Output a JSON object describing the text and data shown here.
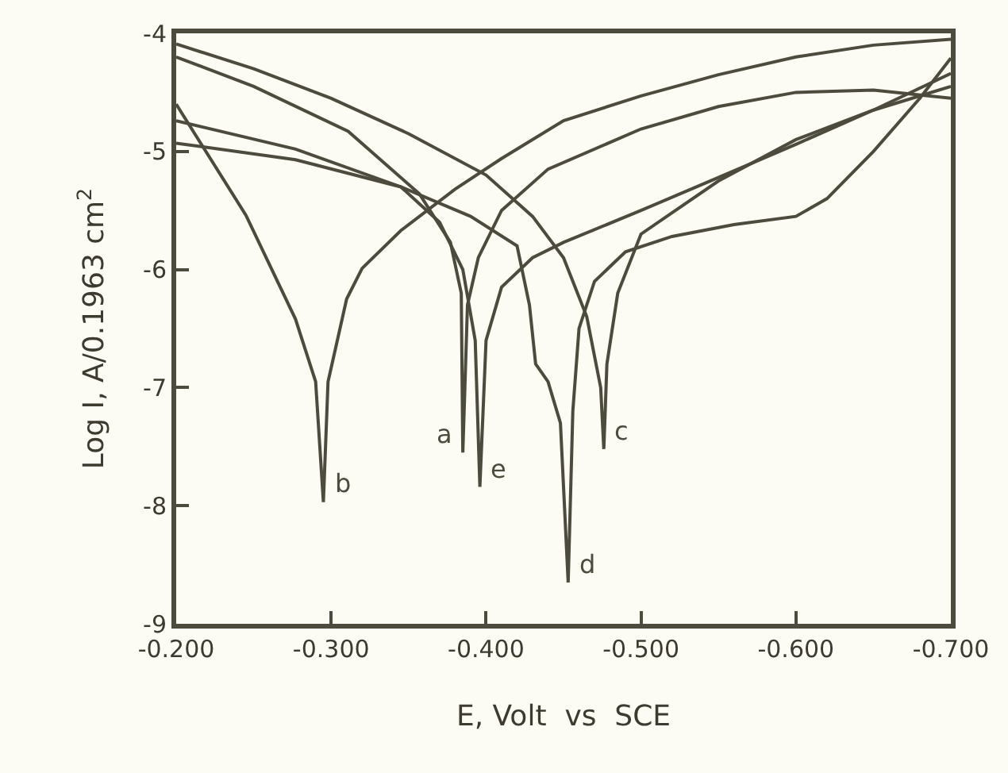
{
  "chart_data": {
    "type": "line",
    "xlabel": "E, Volt  vs  SCE",
    "ylabel": "Log I, A/0.1963 cm$^{2}$",
    "xlim": [
      -0.2,
      -0.7
    ],
    "ylim": [
      -9,
      -4
    ],
    "xticks": [
      {
        "value": -0.2,
        "label": "-0.200"
      },
      {
        "value": -0.3,
        "label": "-0.300"
      },
      {
        "value": -0.4,
        "label": "-0.400"
      },
      {
        "value": -0.5,
        "label": "-0.500"
      },
      {
        "value": -0.6,
        "label": "-0.600"
      },
      {
        "value": -0.7,
        "label": "-0.700"
      }
    ],
    "yticks": [
      -4,
      -5,
      -6,
      -7,
      -8,
      -9
    ],
    "grid": false,
    "legend": false,
    "marker": "none",
    "line_style": "solid",
    "series": [
      {
        "name": "a",
        "color": "#4d4a3e",
        "x": [
          -0.2,
          -0.25,
          -0.311,
          -0.357,
          -0.377,
          -0.384,
          -0.385,
          -0.388,
          -0.395,
          -0.41,
          -0.44,
          -0.5,
          -0.55,
          -0.6,
          -0.65,
          -0.7
        ],
        "values": [
          -4.2,
          -4.45,
          -4.83,
          -5.36,
          -5.77,
          -6.2,
          -7.55,
          -6.3,
          -5.9,
          -5.5,
          -5.15,
          -4.81,
          -4.62,
          -4.5,
          -4.48,
          -4.55
        ]
      },
      {
        "name": "b",
        "color": "#4d4a3e",
        "x": [
          -0.2,
          -0.245,
          -0.277,
          -0.29,
          -0.295,
          -0.298,
          -0.31,
          -0.32,
          -0.345,
          -0.38,
          -0.41,
          -0.45,
          -0.5,
          -0.55,
          -0.6,
          -0.65,
          -0.7
        ],
        "values": [
          -4.6,
          -5.54,
          -6.42,
          -6.95,
          -7.97,
          -6.95,
          -6.25,
          -5.99,
          -5.67,
          -5.32,
          -5.06,
          -4.74,
          -4.53,
          -4.35,
          -4.2,
          -4.1,
          -4.05
        ]
      },
      {
        "name": "c",
        "color": "#4d4a3e",
        "x": [
          -0.2,
          -0.25,
          -0.3,
          -0.35,
          -0.4,
          -0.43,
          -0.45,
          -0.465,
          -0.474,
          -0.476,
          -0.478,
          -0.485,
          -0.5,
          -0.55,
          -0.6,
          -0.65,
          -0.7
        ],
        "values": [
          -4.09,
          -4.3,
          -4.55,
          -4.85,
          -5.2,
          -5.55,
          -5.9,
          -6.4,
          -7.0,
          -7.52,
          -6.8,
          -6.2,
          -5.7,
          -5.25,
          -4.9,
          -4.65,
          -4.45
        ]
      },
      {
        "name": "d",
        "color": "#4d4a3e",
        "x": [
          -0.2,
          -0.277,
          -0.345,
          -0.39,
          -0.42,
          -0.428,
          -0.432,
          -0.44,
          -0.448,
          -0.453,
          -0.456,
          -0.46,
          -0.47,
          -0.49,
          -0.52,
          -0.56,
          -0.6,
          -0.62,
          -0.65,
          -0.68,
          -0.7
        ],
        "values": [
          -4.93,
          -5.07,
          -5.3,
          -5.55,
          -5.8,
          -6.3,
          -6.8,
          -6.95,
          -7.3,
          -8.65,
          -7.2,
          -6.5,
          -6.1,
          -5.85,
          -5.72,
          -5.62,
          -5.55,
          -5.4,
          -5.0,
          -4.55,
          -4.21
        ]
      },
      {
        "name": "e",
        "color": "#4d4a3e",
        "x": [
          -0.2,
          -0.277,
          -0.345,
          -0.37,
          -0.385,
          -0.393,
          -0.396,
          -0.4,
          -0.41,
          -0.43,
          -0.45,
          -0.5,
          -0.55,
          -0.6,
          -0.65,
          -0.7
        ],
        "values": [
          -4.74,
          -4.98,
          -5.3,
          -5.6,
          -6.0,
          -6.6,
          -7.84,
          -6.6,
          -6.15,
          -5.9,
          -5.77,
          -5.5,
          -5.22,
          -4.94,
          -4.65,
          -4.34
        ]
      }
    ]
  }
}
